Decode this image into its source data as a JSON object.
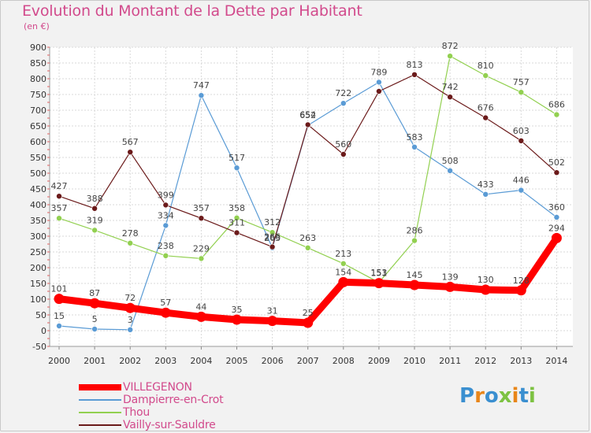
{
  "title": "Evolution du Montant de la Dette par Habitant",
  "subtitle": "(en €)",
  "logo": {
    "text": "Proxiti",
    "colors": [
      "#3a8fd0",
      "#e8861a",
      "#3a8fd0",
      "#7dc242",
      "#e8861a",
      "#3a8fd0",
      "#7dc242"
    ]
  },
  "chart_data": {
    "type": "line",
    "x": [
      "2000",
      "2001",
      "2002",
      "2003",
      "2004",
      "2005",
      "2006",
      "2007",
      "2008",
      "2009",
      "2010",
      "2011",
      "2012",
      "2013",
      "2014"
    ],
    "ylim": [
      -50,
      900
    ],
    "yticks": [
      -50,
      0,
      50,
      100,
      150,
      200,
      250,
      300,
      350,
      400,
      450,
      500,
      550,
      600,
      650,
      700,
      750,
      800,
      850,
      900
    ],
    "grid": true,
    "legend_position": "bottom-left",
    "series": [
      {
        "name": "VILLEGENON",
        "color": "#ff0000",
        "width": 9,
        "values": [
          101,
          87,
          72,
          57,
          44,
          35,
          31,
          25,
          154,
          151,
          145,
          139,
          130,
          128,
          294
        ],
        "labels": [
          "101",
          "87",
          "72",
          "57",
          "44",
          "35",
          "31",
          "25",
          "154",
          "151",
          "145",
          "139",
          "130",
          "128",
          "294"
        ]
      },
      {
        "name": "Dampierre-en-Crot",
        "color": "#5a9bd5",
        "width": 1.2,
        "values": [
          15,
          5,
          3,
          334,
          747,
          517,
          263,
          652,
          722,
          789,
          583,
          508,
          433,
          446,
          360
        ],
        "labels": [
          "15",
          "5",
          "3",
          "334",
          "747",
          "517",
          "263",
          "652",
          "722",
          "789",
          "583",
          "508",
          "433",
          "446",
          "360"
        ]
      },
      {
        "name": "Thou",
        "color": "#92d050",
        "width": 1.2,
        "values": [
          357,
          319,
          278,
          238,
          229,
          358,
          312,
          263,
          213,
          153,
          286,
          872,
          810,
          757,
          686
        ],
        "labels": [
          "357",
          "319",
          "278",
          "238",
          "229",
          "358",
          "312",
          "263",
          "213",
          "153",
          "286",
          "872",
          "810",
          "757",
          "686"
        ]
      },
      {
        "name": "Vailly-sur-Sauldre",
        "color": "#6b1a1a",
        "width": 1.2,
        "values": [
          427,
          388,
          567,
          399,
          357,
          311,
          266,
          654,
          560,
          760,
          813,
          742,
          676,
          603,
          502
        ],
        "labels": [
          "427",
          "388",
          "567",
          "399",
          "357",
          "311",
          "266",
          "654",
          "560",
          "",
          "813",
          "742",
          "676",
          "603",
          "502"
        ]
      }
    ]
  }
}
